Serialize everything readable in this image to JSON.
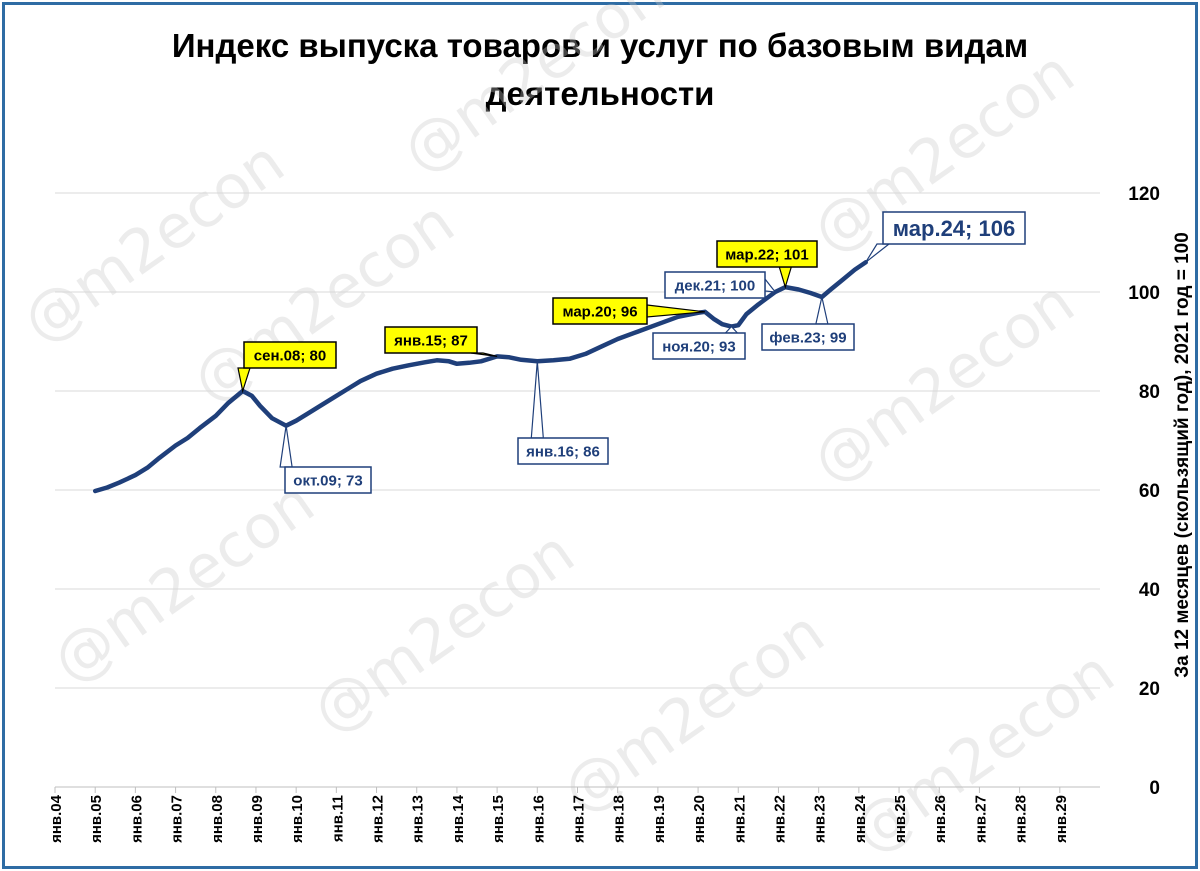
{
  "title_line1": "Индекс выпуска товаров и услуг по базовым видам",
  "title_line2": "деятельности",
  "watermark": "@m2econ",
  "chart_data": {
    "type": "line",
    "title": "Индекс выпуска товаров и услуг по базовым видам деятельности",
    "ylabel": "За 12 месяцев (скользящий год), 2021 год =  100",
    "ylim": [
      0,
      120
    ],
    "yticks": [
      "0",
      "20",
      "40",
      "60",
      "80",
      "100",
      "120"
    ],
    "xlim": [
      2004,
      2030
    ],
    "xticks": [
      "янв.04",
      "янв.05",
      "янв.06",
      "янв.07",
      "янв.08",
      "янв.09",
      "янв.10",
      "янв.11",
      "янв.12",
      "янв.13",
      "янв.14",
      "янв.15",
      "янв.16",
      "янв.17",
      "янв.18",
      "янв.19",
      "янв.20",
      "янв.21",
      "янв.22",
      "янв.23",
      "янв.24",
      "янв.25",
      "янв.26",
      "янв.27",
      "янв.28",
      "янв.29"
    ],
    "grid": true,
    "color": "#1f3f7a",
    "series": [
      {
        "points": [
          [
            2005.0,
            59.8
          ],
          [
            2005.3,
            60.5
          ],
          [
            2005.6,
            61.5
          ],
          [
            2006.0,
            63.0
          ],
          [
            2006.3,
            64.5
          ],
          [
            2006.6,
            66.5
          ],
          [
            2007.0,
            69.0
          ],
          [
            2007.3,
            70.5
          ],
          [
            2007.6,
            72.5
          ],
          [
            2008.0,
            75.0
          ],
          [
            2008.3,
            77.5
          ],
          [
            2008.67,
            80.0
          ],
          [
            2008.9,
            79.0
          ],
          [
            2009.1,
            77.0
          ],
          [
            2009.4,
            74.5
          ],
          [
            2009.75,
            73.0
          ],
          [
            2010.0,
            74.0
          ],
          [
            2010.3,
            75.5
          ],
          [
            2010.6,
            77.0
          ],
          [
            2011.0,
            79.0
          ],
          [
            2011.3,
            80.5
          ],
          [
            2011.6,
            82.0
          ],
          [
            2012.0,
            83.5
          ],
          [
            2012.4,
            84.5
          ],
          [
            2012.8,
            85.2
          ],
          [
            2013.2,
            85.8
          ],
          [
            2013.5,
            86.2
          ],
          [
            2013.8,
            86.0
          ],
          [
            2014.0,
            85.5
          ],
          [
            2014.3,
            85.7
          ],
          [
            2014.6,
            86.0
          ],
          [
            2015.0,
            87.0
          ],
          [
            2015.3,
            86.8
          ],
          [
            2015.6,
            86.3
          ],
          [
            2016.0,
            86.0
          ],
          [
            2016.4,
            86.2
          ],
          [
            2016.8,
            86.5
          ],
          [
            2017.2,
            87.5
          ],
          [
            2017.6,
            89.0
          ],
          [
            2018.0,
            90.5
          ],
          [
            2018.5,
            92.0
          ],
          [
            2019.0,
            93.5
          ],
          [
            2019.5,
            95.0
          ],
          [
            2020.0,
            95.8
          ],
          [
            2020.17,
            96.0
          ],
          [
            2020.4,
            94.5
          ],
          [
            2020.6,
            93.5
          ],
          [
            2020.83,
            93.0
          ],
          [
            2021.0,
            93.3
          ],
          [
            2021.2,
            95.5
          ],
          [
            2021.5,
            97.5
          ],
          [
            2021.92,
            100.0
          ],
          [
            2022.17,
            101.0
          ],
          [
            2022.5,
            100.5
          ],
          [
            2022.8,
            99.8
          ],
          [
            2023.08,
            99.0
          ],
          [
            2023.3,
            100.5
          ],
          [
            2023.6,
            102.5
          ],
          [
            2023.9,
            104.5
          ],
          [
            2024.17,
            106.0
          ]
        ]
      }
    ],
    "annotations": [
      {
        "text": "сен.08; 80",
        "x": 2008.67,
        "y": 80,
        "style": "yellow"
      },
      {
        "text": "окт.09; 73",
        "x": 2009.75,
        "y": 73,
        "style": "white"
      },
      {
        "text": "янв.15; 87",
        "x": 2015.0,
        "y": 87,
        "style": "yellow"
      },
      {
        "text": "янв.16; 86",
        "x": 2016.0,
        "y": 86,
        "style": "white"
      },
      {
        "text": "мар.20; 96",
        "x": 2020.17,
        "y": 96,
        "style": "yellow"
      },
      {
        "text": "ноя.20; 93",
        "x": 2020.83,
        "y": 93,
        "style": "white"
      },
      {
        "text": "дек.21; 100",
        "x": 2021.92,
        "y": 100,
        "style": "white"
      },
      {
        "text": "мар.22; 101",
        "x": 2022.17,
        "y": 101,
        "style": "yellow"
      },
      {
        "text": "фев.23; 99",
        "x": 2023.08,
        "y": 99,
        "style": "white"
      },
      {
        "text": "мар.24; 106",
        "x": 2024.17,
        "y": 106,
        "style": "white-large"
      }
    ]
  }
}
